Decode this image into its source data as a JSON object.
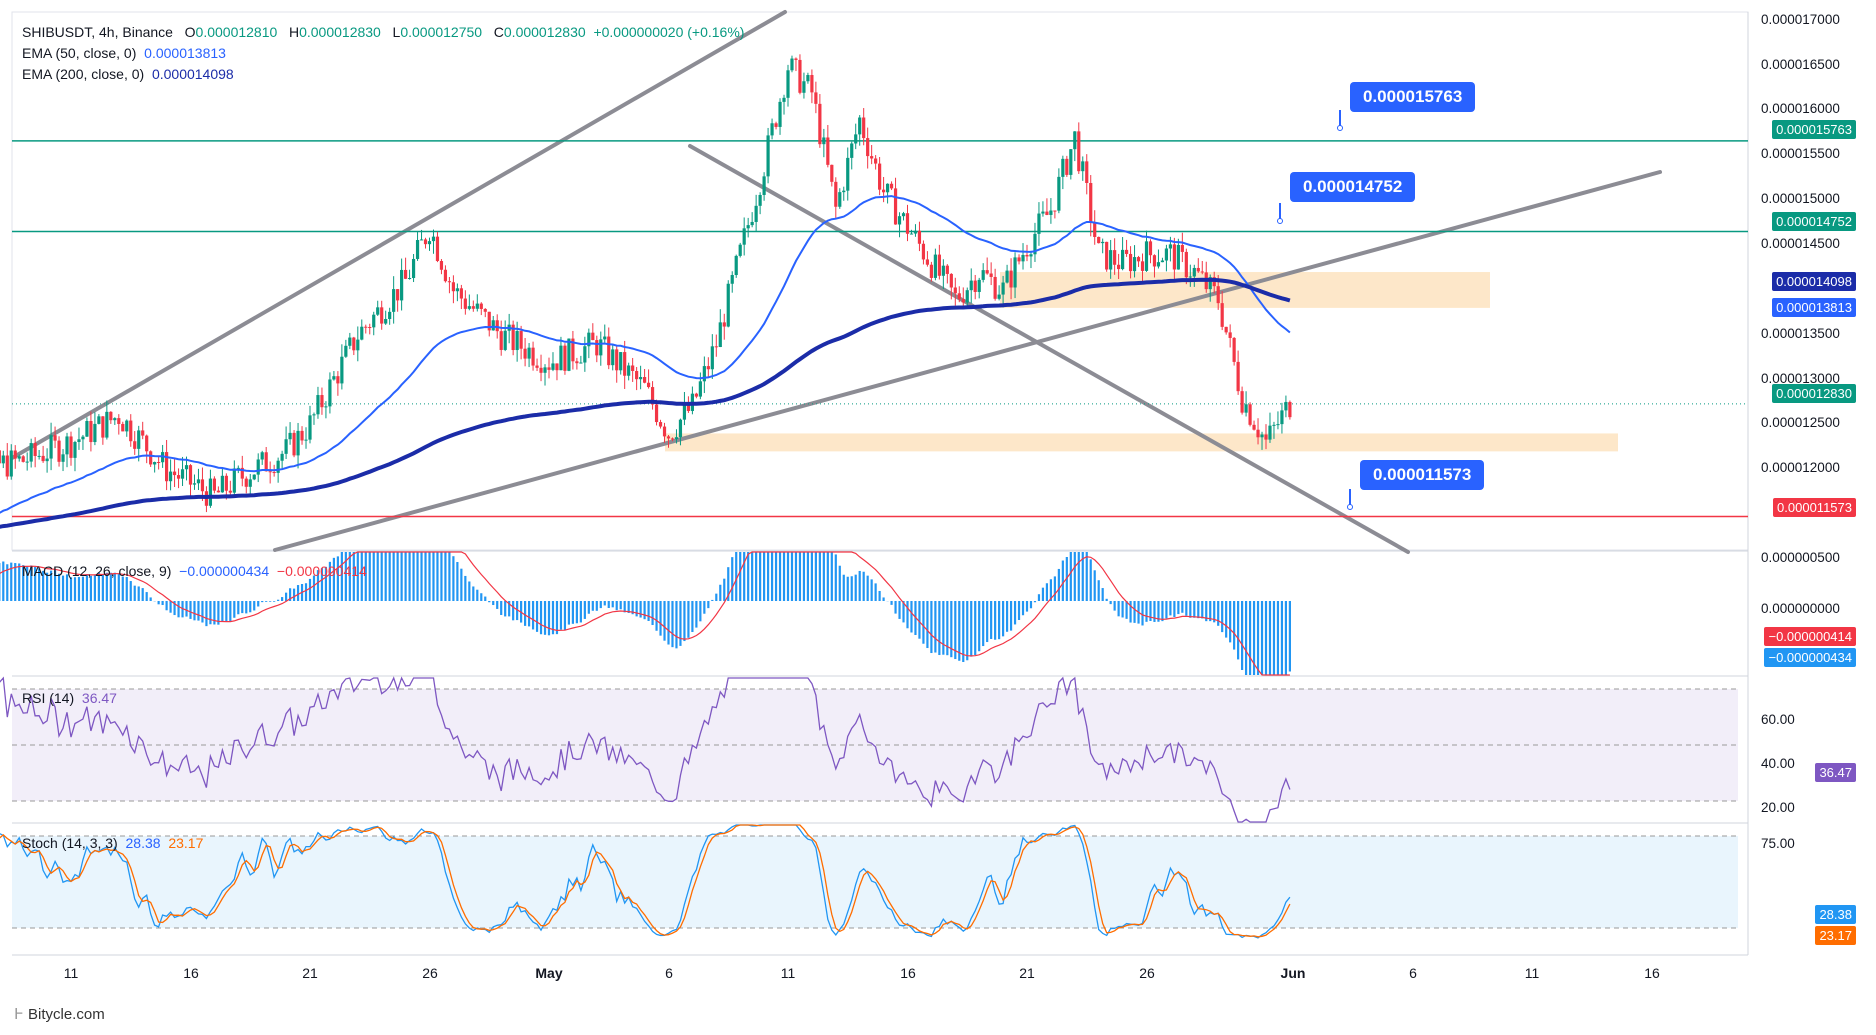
{
  "header": {
    "symbol": "SHIBUSDT, 4h, Binance",
    "ohlc": [
      {
        "k": "O",
        "v": "0.000012810"
      },
      {
        "k": "H",
        "v": "0.000012830"
      },
      {
        "k": "L",
        "v": "0.000012750"
      },
      {
        "k": "C",
        "v": "0.000012830"
      }
    ],
    "change": "+0.000000020 (+0.16%)",
    "ema50_label": "EMA (50, close, 0)",
    "ema50_value": "0.000013813",
    "ema200_label": "EMA (200, close, 0)",
    "ema200_value": "0.000014098"
  },
  "callouts": [
    {
      "text": "0.000015763",
      "price": 1.5763e-05
    },
    {
      "text": "0.000014752",
      "price": 1.4752e-05
    },
    {
      "text": "0.000011573",
      "price": 1.1573e-05
    }
  ],
  "price_tags": {
    "resistance_1": "0.000015763",
    "resistance_2": "0.000014752",
    "ema200": "0.000014098",
    "ema50": "0.000013813",
    "last": "0.000012830",
    "support": "0.000011573"
  },
  "price_axis": [
    "0.000017000",
    "0.000016500",
    "0.000016000",
    "0.000015500",
    "0.000015000",
    "0.000014500",
    "0.000013500",
    "0.000013000",
    "0.000012500",
    "0.000012000"
  ],
  "macd": {
    "label": "MACD (12, 26, close, 9)",
    "hist_value": "−0.000000434",
    "signal_value": "−0.000000414",
    "axis": [
      "0.000000500",
      "0.000000000"
    ],
    "tag_signal": "−0.000000414",
    "tag_macd": "−0.000000434"
  },
  "rsi": {
    "label": "RSI (14)",
    "value": "36.47",
    "axis": [
      "60.00",
      "40.00",
      "20.00"
    ],
    "tag": "36.47"
  },
  "stoch": {
    "label": "Stoch (14, 3, 3)",
    "k": "28.38",
    "d": "23.17",
    "axis": [
      "75.00"
    ],
    "tag_k": "28.38",
    "tag_d": "23.17"
  },
  "time_axis": [
    "11",
    "16",
    "21",
    "26",
    "May",
    "6",
    "11",
    "16",
    "21",
    "26",
    "Jun",
    "6",
    "11",
    "16"
  ],
  "brand": "Bitycle.com",
  "colors": {
    "up": "#089981",
    "down": "#f23645",
    "ema50": "#2962ff",
    "ema200": "#1b2ca8",
    "resistance": "#089981",
    "support": "#f23645",
    "zone": "#fde3c0",
    "trendline": "#8c8c94",
    "callout": "#2962ff",
    "rsi": "#7e57c2",
    "stoch_k": "#2196f3",
    "stoch_d": "#ff6d00",
    "macd_hist": "#2196f3",
    "macd_signal": "#f23645"
  },
  "chart_data": {
    "type": "candlestick",
    "symbol": "SHIBUSDT",
    "interval": "4h",
    "exchange": "Binance",
    "x_ticks": [
      "11",
      "16",
      "21",
      "26",
      "May",
      "6",
      "11",
      "16",
      "21",
      "26",
      "Jun",
      "6",
      "11",
      "16"
    ],
    "price_ylim": [
      1.12e-05,
      1.72e-05
    ],
    "close_path": [
      {
        "x": "Apr 6",
        "y": 1.14e-05
      },
      {
        "x": "Apr 7",
        "y": 1.21e-05
      },
      {
        "x": "Apr 9",
        "y": 1.22e-05
      },
      {
        "x": "Apr 11",
        "y": 1.24e-05
      },
      {
        "x": "Apr 13",
        "y": 1.27e-05
      },
      {
        "x": "Apr 15",
        "y": 1.21e-05
      },
      {
        "x": "Apr 17",
        "y": 1.18e-05
      },
      {
        "x": "Apr 18",
        "y": 1.2e-05
      },
      {
        "x": "Apr 20",
        "y": 1.23e-05
      },
      {
        "x": "Apr 21",
        "y": 1.26e-05
      },
      {
        "x": "Apr 23",
        "y": 1.36e-05
      },
      {
        "x": "Apr 25",
        "y": 1.42e-05
      },
      {
        "x": "Apr 26",
        "y": 1.48e-05
      },
      {
        "x": "Apr 27",
        "y": 1.41e-05
      },
      {
        "x": "Apr 29",
        "y": 1.36e-05
      },
      {
        "x": "May 1",
        "y": 1.33e-05
      },
      {
        "x": "May 3",
        "y": 1.35e-05
      },
      {
        "x": "May 5",
        "y": 1.3e-05
      },
      {
        "x": "May 6",
        "y": 1.25e-05
      },
      {
        "x": "May 7",
        "y": 1.28e-05
      },
      {
        "x": "May 8",
        "y": 1.35e-05
      },
      {
        "x": "May 9",
        "y": 1.45e-05
      },
      {
        "x": "May 10",
        "y": 1.55e-05
      },
      {
        "x": "May 11",
        "y": 1.66e-05
      },
      {
        "x": "May 12",
        "y": 1.63e-05
      },
      {
        "x": "May 13",
        "y": 1.5e-05
      },
      {
        "x": "May 14",
        "y": 1.6e-05
      },
      {
        "x": "May 15",
        "y": 1.52e-05
      },
      {
        "x": "May 16",
        "y": 1.48e-05
      },
      {
        "x": "May 18",
        "y": 1.4e-05
      },
      {
        "x": "May 19",
        "y": 1.43e-05
      },
      {
        "x": "May 20",
        "y": 1.41e-05
      },
      {
        "x": "May 21",
        "y": 1.46e-05
      },
      {
        "x": "May 22",
        "y": 1.5e-05
      },
      {
        "x": "May 23",
        "y": 1.58e-05
      },
      {
        "x": "May 24",
        "y": 1.45e-05
      },
      {
        "x": "May 25",
        "y": 1.44e-05
      },
      {
        "x": "May 26",
        "y": 1.45e-05
      },
      {
        "x": "May 27",
        "y": 1.45e-05
      },
      {
        "x": "May 28",
        "y": 1.43e-05
      },
      {
        "x": "May 29",
        "y": 1.4e-05
      },
      {
        "x": "May 30",
        "y": 1.29e-05
      },
      {
        "x": "May 31",
        "y": 1.24e-05
      },
      {
        "x": "Jun 1",
        "y": 1.283e-05
      }
    ],
    "horizontal_levels": [
      {
        "name": "resistance",
        "price": 1.5763e-05
      },
      {
        "name": "resistance",
        "price": 1.4752e-05
      },
      {
        "name": "support",
        "price": 1.1573e-05
      }
    ],
    "zones": [
      {
        "from": 1.39e-05,
        "to": 1.43e-05
      },
      {
        "from": 1.23e-05,
        "to": 1.25e-05
      }
    ],
    "indicators": {
      "ema50": 1.3813e-05,
      "ema200": 1.4098e-05,
      "macd": -4.34e-07,
      "macd_signal": -4.14e-07,
      "rsi14": 36.47,
      "stoch_k": 28.38,
      "stoch_d": 23.17
    }
  }
}
